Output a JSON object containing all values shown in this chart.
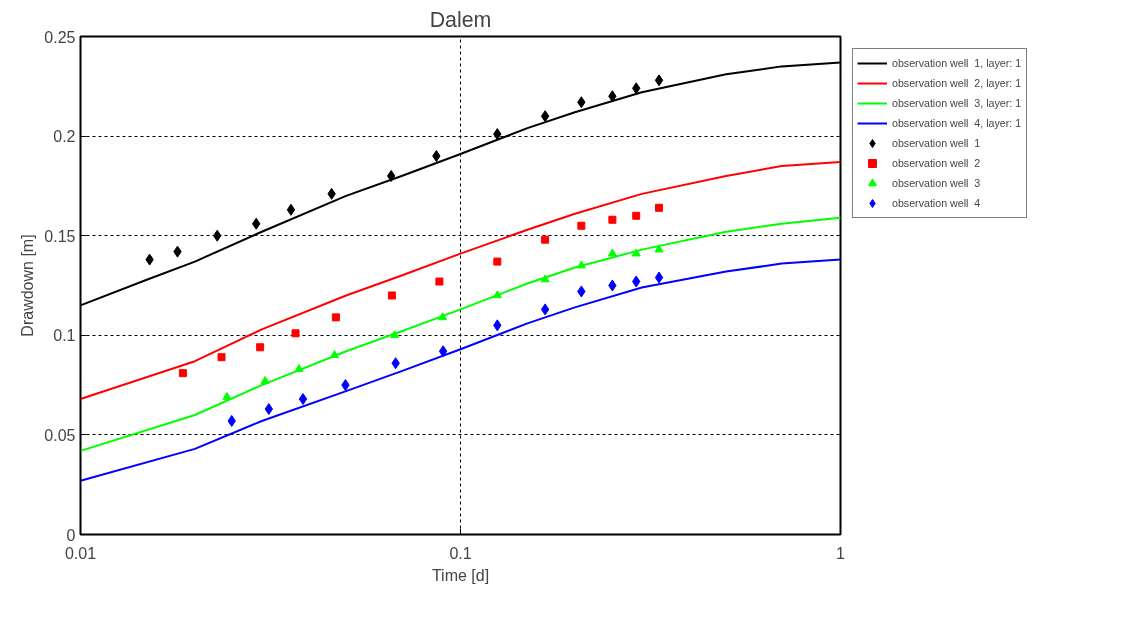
{
  "chart_data": {
    "type": "line",
    "title": "Dalem",
    "xlabel": "Time [d]",
    "ylabel": "Drawdown [m]",
    "log": "x",
    "xlim": [
      0.01,
      1
    ],
    "xticks": [
      0.01,
      0.1,
      1
    ],
    "ylim": [
      0,
      0.25
    ],
    "yticks": [
      0,
      0.05,
      0.1,
      0.15,
      0.2,
      0.25
    ],
    "grid": true,
    "legend": "right",
    "line_style": "solid",
    "series": [
      {
        "name": "observation well  1, layer: 1",
        "color": "#000000",
        "x": [
          0.01,
          0.015,
          0.02,
          0.03,
          0.05,
          0.07,
          0.1,
          0.15,
          0.2,
          0.3,
          0.5,
          0.7,
          1
        ],
        "values": [
          0.115,
          0.128,
          0.137,
          0.152,
          0.17,
          0.18,
          0.191,
          0.204,
          0.212,
          0.222,
          0.231,
          0.235,
          0.237
        ]
      },
      {
        "name": "observation well  2, layer: 1",
        "color": "#ff0000",
        "x": [
          0.01,
          0.02,
          0.03,
          0.05,
          0.07,
          0.1,
          0.15,
          0.2,
          0.3,
          0.5,
          0.7,
          1
        ],
        "values": [
          0.068,
          0.087,
          0.103,
          0.12,
          0.13,
          0.141,
          0.153,
          0.161,
          0.171,
          0.18,
          0.185,
          0.187
        ]
      },
      {
        "name": "observation well  3, layer: 1",
        "color": "#00ff00",
        "x": [
          0.01,
          0.02,
          0.03,
          0.05,
          0.07,
          0.1,
          0.15,
          0.2,
          0.3,
          0.5,
          0.7,
          1
        ],
        "values": [
          0.042,
          0.06,
          0.075,
          0.092,
          0.102,
          0.113,
          0.126,
          0.134,
          0.143,
          0.152,
          0.156,
          0.159
        ]
      },
      {
        "name": "observation well  4, layer: 1",
        "color": "#0000ff",
        "x": [
          0.01,
          0.02,
          0.03,
          0.05,
          0.07,
          0.1,
          0.15,
          0.2,
          0.3,
          0.5,
          0.7,
          1
        ],
        "values": [
          0.027,
          0.043,
          0.057,
          0.072,
          0.082,
          0.093,
          0.106,
          0.114,
          0.124,
          0.132,
          0.136,
          0.138
        ]
      },
      {
        "type": "scatter",
        "name": "observation well  1",
        "color": "#000000",
        "marker": "diamond",
        "x": [
          0.0152,
          0.018,
          0.0229,
          0.029,
          0.0358,
          0.0458,
          0.0657,
          0.0864,
          0.125,
          0.167,
          0.208,
          0.251,
          0.29,
          0.333
        ],
        "values": [
          0.138,
          0.142,
          0.15,
          0.156,
          0.163,
          0.171,
          0.18,
          0.19,
          0.201,
          0.21,
          0.217,
          0.22,
          0.224,
          0.228
        ]
      },
      {
        "type": "scatter",
        "name": "observation well  2",
        "color": "#ff0000",
        "marker": "square",
        "x": [
          0.0186,
          0.0235,
          0.0297,
          0.0368,
          0.047,
          0.066,
          0.088,
          0.125,
          0.167,
          0.208,
          0.251,
          0.29,
          0.333
        ],
        "values": [
          0.081,
          0.089,
          0.094,
          0.101,
          0.109,
          0.12,
          0.127,
          0.137,
          0.148,
          0.155,
          0.158,
          0.16,
          0.164
        ]
      },
      {
        "type": "scatter",
        "name": "observation well  3",
        "color": "#00ff00",
        "marker": "triangle",
        "x": [
          0.0243,
          0.0306,
          0.0376,
          0.0466,
          0.0671,
          0.0897,
          0.125,
          0.167,
          0.208,
          0.251,
          0.29,
          0.333
        ],
        "values": [
          0.069,
          0.077,
          0.083,
          0.09,
          0.1,
          0.109,
          0.12,
          0.128,
          0.135,
          0.141,
          0.141,
          0.143
        ]
      },
      {
        "type": "scatter",
        "name": "observation well  4",
        "color": "#0000ff",
        "marker": "diamond",
        "x": [
          0.025,
          0.0313,
          0.0385,
          0.0498,
          0.0675,
          0.09,
          0.125,
          0.167,
          0.208,
          0.251,
          0.29,
          0.333
        ],
        "values": [
          0.057,
          0.063,
          0.068,
          0.075,
          0.086,
          0.092,
          0.105,
          0.113,
          0.122,
          0.125,
          0.127,
          0.129
        ]
      }
    ]
  }
}
